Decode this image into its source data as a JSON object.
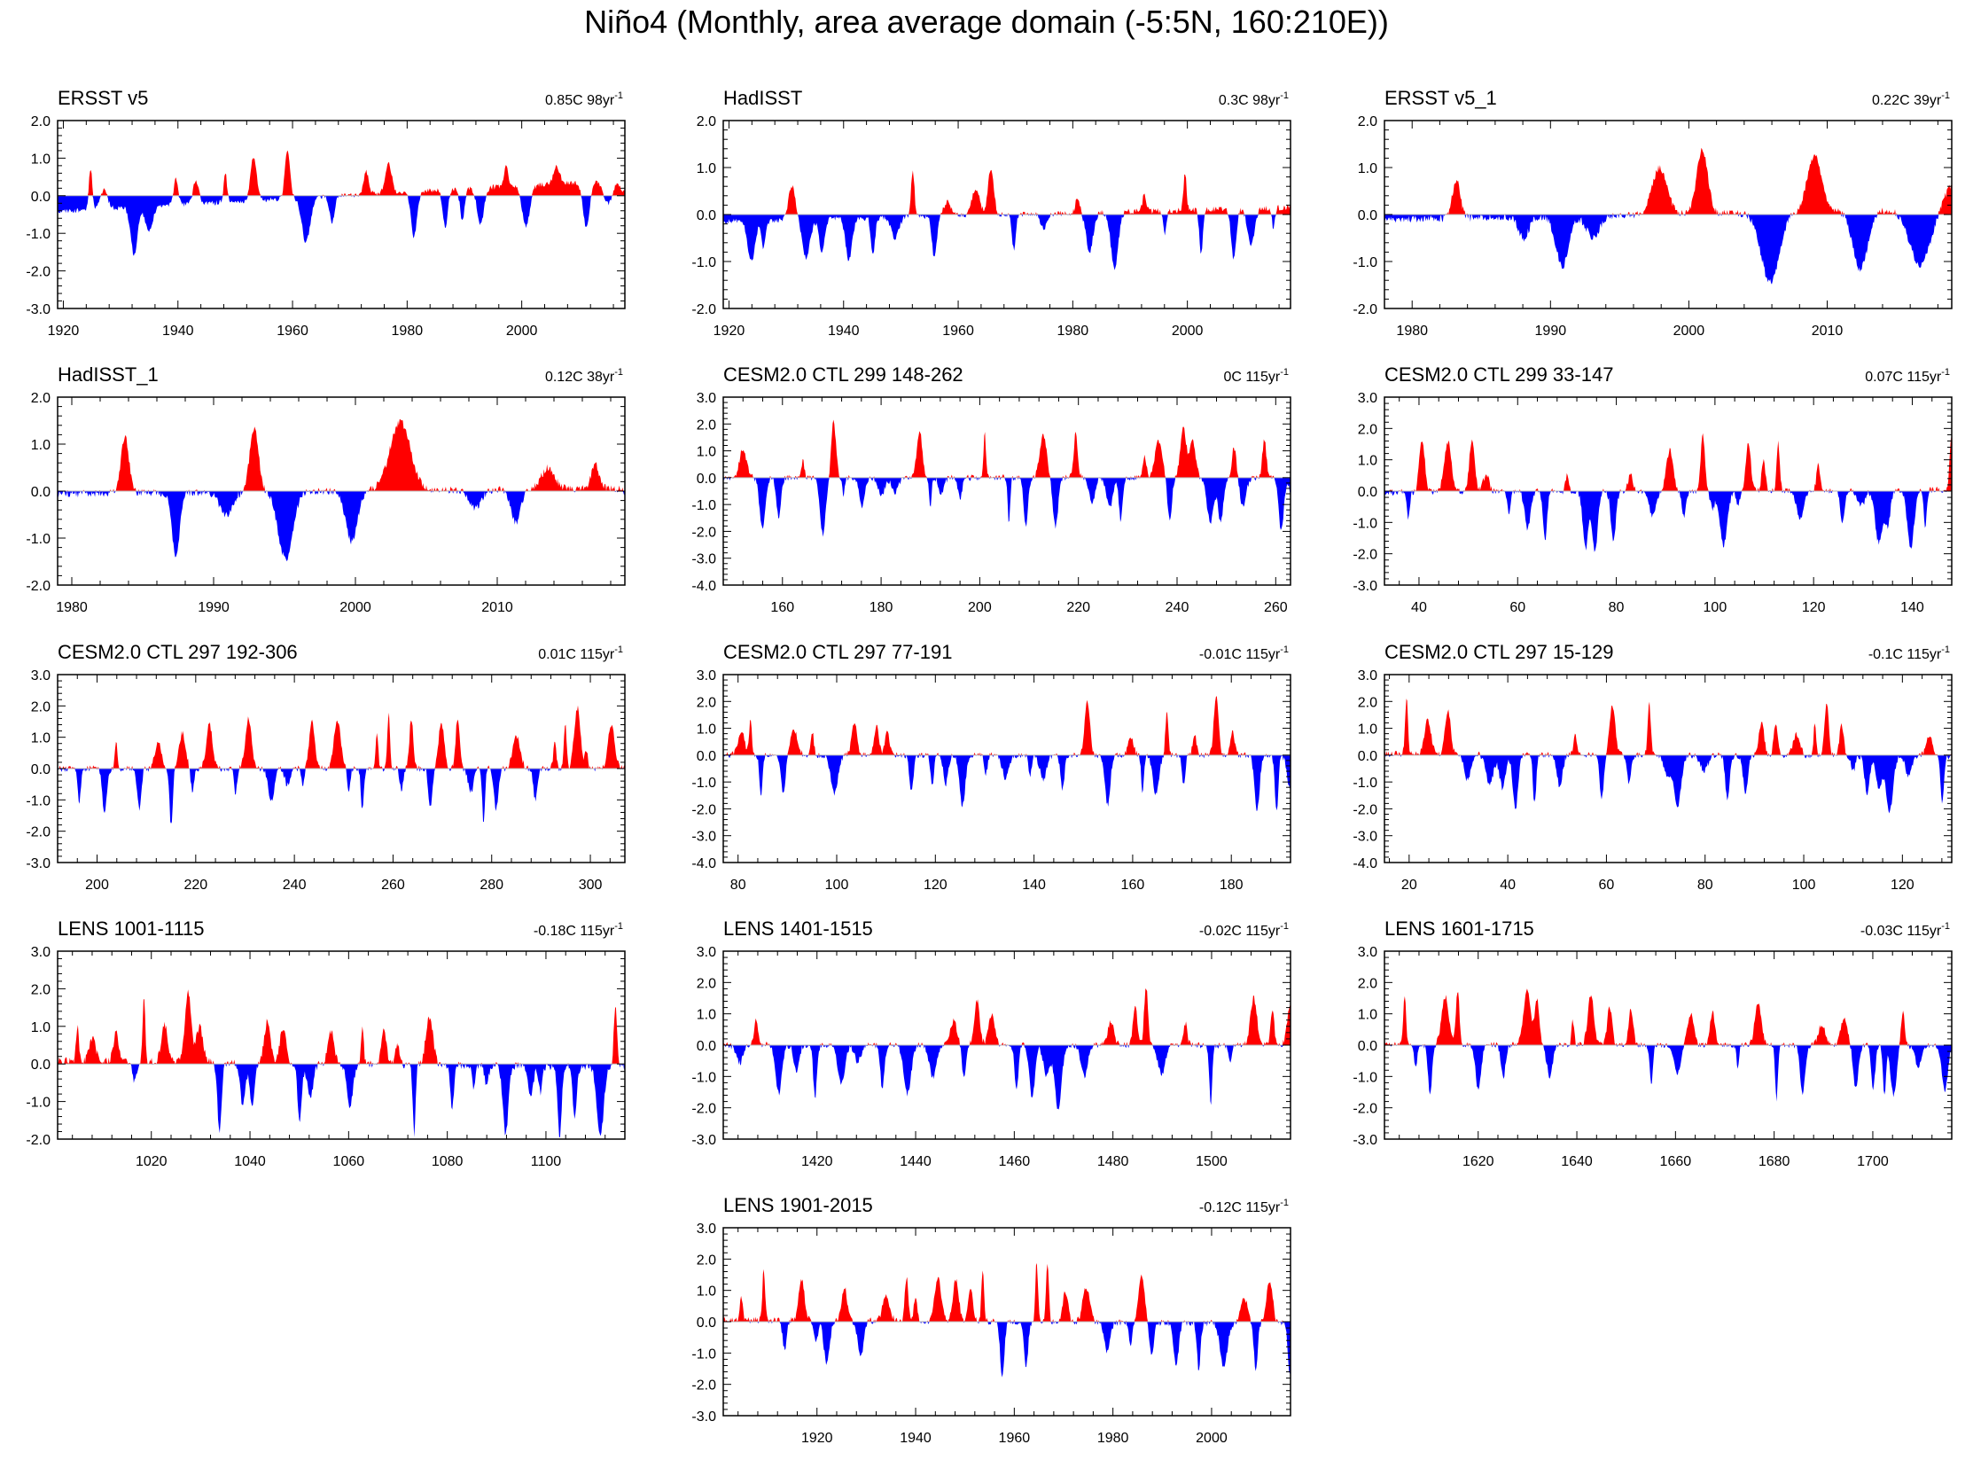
{
  "title": "Niño4 (Monthly, area average domain (-5:5N, 160:210E))",
  "colors": {
    "positive": "#ff0000",
    "negative": "#0000ff",
    "axis": "#000000",
    "zero_line": "#bbbbbb"
  },
  "chart_data": [
    {
      "type": "area",
      "name": "ERSST v5",
      "trend": "0.85C 98yr",
      "trend_unit_sup": "-1",
      "xlim": [
        1919,
        2018
      ],
      "ylim": [
        -3.0,
        2.0
      ],
      "yticks": [
        2.0,
        1.0,
        0.0,
        -1.0,
        -2.0,
        -3.0
      ],
      "xticks": [
        1920,
        1940,
        1960,
        1980,
        2000
      ],
      "seed": 11,
      "drift": 0.85,
      "amp": 0.75,
      "cycle": 4.5
    },
    {
      "type": "area",
      "name": "HadISST",
      "trend": "0.3C 98yr",
      "trend_unit_sup": "-1",
      "xlim": [
        1919,
        2018
      ],
      "ylim": [
        -2.0,
        2.0
      ],
      "yticks": [
        2.0,
        1.0,
        0.0,
        -1.0,
        -2.0
      ],
      "xticks": [
        1920,
        1940,
        1960,
        1980,
        2000
      ],
      "seed": 23,
      "drift": 0.3,
      "amp": 0.7,
      "cycle": 4.5
    },
    {
      "type": "area",
      "name": "ERSST v5_1",
      "trend": "0.22C 39yr",
      "trend_unit_sup": "-1",
      "xlim": [
        1978,
        2019
      ],
      "ylim": [
        -2.0,
        2.0
      ],
      "yticks": [
        2.0,
        1.0,
        0.0,
        -1.0,
        -2.0
      ],
      "xticks": [
        1980,
        1990,
        2000,
        2010
      ],
      "seed": 37,
      "drift": 0.22,
      "amp": 0.9,
      "cycle": 4.0
    },
    {
      "type": "area",
      "name": "HadISST_1",
      "trend": "0.12C 38yr",
      "trend_unit_sup": "-1",
      "xlim": [
        1979,
        2019
      ],
      "ylim": [
        -2.0,
        2.0
      ],
      "yticks": [
        2.0,
        1.0,
        0.0,
        -1.0,
        -2.0
      ],
      "xticks": [
        1980,
        1990,
        2000,
        2010
      ],
      "seed": 41,
      "drift": 0.12,
      "amp": 0.9,
      "cycle": 4.0
    },
    {
      "type": "area",
      "name": "CESM2.0 CTL 299 148-262",
      "trend": "0C 115yr",
      "trend_unit_sup": "-1",
      "xlim": [
        148,
        263
      ],
      "ylim": [
        -4.0,
        3.0
      ],
      "yticks": [
        3.0,
        2.0,
        1.0,
        0.0,
        -1.0,
        -2.0,
        -3.0,
        -4.0
      ],
      "xticks": [
        160,
        180,
        200,
        220,
        240,
        260
      ],
      "seed": 53,
      "drift": 0.0,
      "amp": 1.3,
      "cycle": 4.0
    },
    {
      "type": "area",
      "name": "CESM2.0 CTL 299 33-147",
      "trend": "0.07C 115yr",
      "trend_unit_sup": "-1",
      "xlim": [
        33,
        148
      ],
      "ylim": [
        -3.0,
        3.0
      ],
      "yticks": [
        3.0,
        2.0,
        1.0,
        0.0,
        -1.0,
        -2.0,
        -3.0
      ],
      "xticks": [
        40,
        60,
        80,
        100,
        120,
        140
      ],
      "seed": 67,
      "drift": 0.07,
      "amp": 1.2,
      "cycle": 4.0
    },
    {
      "type": "area",
      "name": "CESM2.0 CTL 297 192-306",
      "trend": "0.01C 115yr",
      "trend_unit_sup": "-1",
      "xlim": [
        192,
        307
      ],
      "ylim": [
        -3.0,
        3.0
      ],
      "yticks": [
        3.0,
        2.0,
        1.0,
        0.0,
        -1.0,
        -2.0,
        -3.0
      ],
      "xticks": [
        200,
        220,
        240,
        260,
        280,
        300
      ],
      "seed": 71,
      "drift": 0.01,
      "amp": 1.2,
      "cycle": 4.0
    },
    {
      "type": "area",
      "name": "CESM2.0 CTL 297 77-191",
      "trend": "-0.01C 115yr",
      "trend_unit_sup": "-1",
      "xlim": [
        77,
        192
      ],
      "ylim": [
        -4.0,
        3.0
      ],
      "yticks": [
        3.0,
        2.0,
        1.0,
        0.0,
        -1.0,
        -2.0,
        -3.0,
        -4.0
      ],
      "xticks": [
        80,
        100,
        120,
        140,
        160,
        180
      ],
      "seed": 83,
      "drift": -0.01,
      "amp": 1.3,
      "cycle": 4.0
    },
    {
      "type": "area",
      "name": "CESM2.0 CTL 297 15-129",
      "trend": "-0.1C 115yr",
      "trend_unit_sup": "-1",
      "xlim": [
        15,
        130
      ],
      "ylim": [
        -4.0,
        3.0
      ],
      "yticks": [
        3.0,
        2.0,
        1.0,
        0.0,
        -1.0,
        -2.0,
        -3.0,
        -4.0
      ],
      "xticks": [
        20,
        40,
        60,
        80,
        100,
        120
      ],
      "seed": 97,
      "drift": -0.1,
      "amp": 1.3,
      "cycle": 4.0
    },
    {
      "type": "area",
      "name": "LENS 1001-1115",
      "trend": "-0.18C 115yr",
      "trend_unit_sup": "-1",
      "xlim": [
        1001,
        1116
      ],
      "ylim": [
        -2.0,
        3.0
      ],
      "yticks": [
        3.0,
        2.0,
        1.0,
        0.0,
        -1.0,
        -2.0
      ],
      "xticks": [
        1020,
        1040,
        1060,
        1080,
        1100
      ],
      "seed": 101,
      "drift": -0.18,
      "amp": 1.2,
      "cycle": 4.0
    },
    {
      "type": "area",
      "name": "LENS 1401-1515",
      "trend": "-0.02C 115yr",
      "trend_unit_sup": "-1",
      "xlim": [
        1401,
        1516
      ],
      "ylim": [
        -3.0,
        3.0
      ],
      "yticks": [
        3.0,
        2.0,
        1.0,
        0.0,
        -1.0,
        -2.0,
        -3.0
      ],
      "xticks": [
        1420,
        1440,
        1460,
        1480,
        1500
      ],
      "seed": 113,
      "drift": -0.02,
      "amp": 1.2,
      "cycle": 4.0
    },
    {
      "type": "area",
      "name": "LENS 1601-1715",
      "trend": "-0.03C 115yr",
      "trend_unit_sup": "-1",
      "xlim": [
        1601,
        1716
      ],
      "ylim": [
        -3.0,
        3.0
      ],
      "yticks": [
        3.0,
        2.0,
        1.0,
        0.0,
        -1.0,
        -2.0,
        -3.0
      ],
      "xticks": [
        1620,
        1640,
        1660,
        1680,
        1700
      ],
      "seed": 127,
      "drift": -0.03,
      "amp": 1.1,
      "cycle": 4.0
    },
    {
      "type": "area",
      "name": "LENS 1901-2015",
      "trend": "-0.12C 115yr",
      "trend_unit_sup": "-1",
      "xlim": [
        1901,
        2016
      ],
      "ylim": [
        -3.0,
        3.0
      ],
      "yticks": [
        3.0,
        2.0,
        1.0,
        0.0,
        -1.0,
        -2.0,
        -3.0
      ],
      "xticks": [
        1920,
        1940,
        1960,
        1980,
        2000
      ],
      "seed": 131,
      "drift": -0.12,
      "amp": 1.2,
      "cycle": 4.0
    }
  ]
}
